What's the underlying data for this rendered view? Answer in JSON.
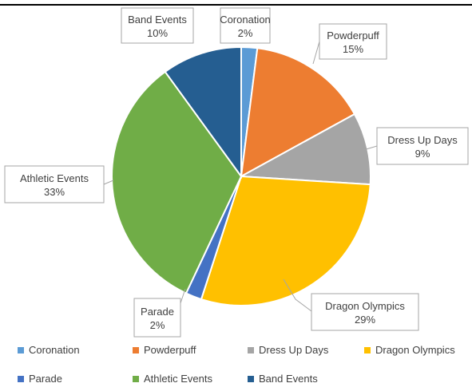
{
  "chart_data": {
    "type": "pie",
    "title": "",
    "slices": [
      {
        "label": "Coronation",
        "value": 2,
        "display": "2%",
        "color": "#5B9BD5"
      },
      {
        "label": "Powderpuff",
        "value": 15,
        "display": "15%",
        "color": "#ED7D31"
      },
      {
        "label": "Dress Up Days",
        "value": 9,
        "display": "9%",
        "color": "#A5A5A5"
      },
      {
        "label": "Dragon Olympics",
        "value": 29,
        "display": "29%",
        "color": "#FFC000"
      },
      {
        "label": "Parade",
        "value": 2,
        "display": "2%",
        "color": "#4472C4"
      },
      {
        "label": "Athletic Events",
        "value": 33,
        "display": "33%",
        "color": "#70AD47"
      },
      {
        "label": "Band Events",
        "value": 10,
        "display": "10%",
        "color": "#255E91"
      }
    ],
    "legend_position": "bottom"
  }
}
